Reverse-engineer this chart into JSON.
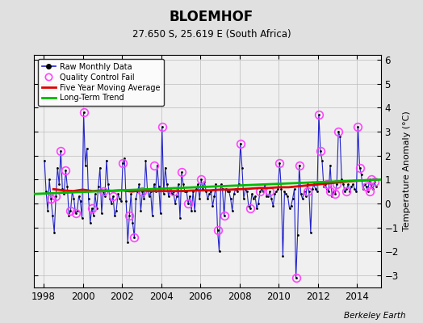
{
  "title": "BLOEMHOF",
  "subtitle": "27.650 S, 25.619 E (South Africa)",
  "ylabel": "Temperature Anomaly (°C)",
  "credit": "Berkeley Earth",
  "xlim": [
    1997.5,
    2015.2
  ],
  "ylim": [
    -3.5,
    6.2
  ],
  "yticks": [
    -3,
    -2,
    -1,
    0,
    1,
    2,
    3,
    4,
    5,
    6
  ],
  "xticks": [
    1998,
    2000,
    2002,
    2004,
    2006,
    2008,
    2010,
    2012,
    2014
  ],
  "bg_color": "#e0e0e0",
  "plot_bg_color": "#f0f0f0",
  "raw_line_color": "#2222cc",
  "raw_marker_color": "#000000",
  "qc_fail_color": "#ff44ff",
  "moving_avg_color": "#dd0000",
  "trend_color": "#00bb00",
  "raw_times": [
    1998.042,
    1998.125,
    1998.208,
    1998.292,
    1998.375,
    1998.458,
    1998.542,
    1998.625,
    1998.708,
    1998.792,
    1998.875,
    1998.958,
    1999.042,
    1999.125,
    1999.208,
    1999.292,
    1999.375,
    1999.458,
    1999.542,
    1999.625,
    1999.708,
    1999.792,
    1999.875,
    1999.958,
    2000.042,
    2000.125,
    2000.208,
    2000.292,
    2000.375,
    2000.458,
    2000.542,
    2000.625,
    2000.708,
    2000.792,
    2000.875,
    2000.958,
    2001.042,
    2001.125,
    2001.208,
    2001.292,
    2001.375,
    2001.458,
    2001.542,
    2001.625,
    2001.708,
    2001.792,
    2001.875,
    2001.958,
    2002.042,
    2002.125,
    2002.208,
    2002.292,
    2002.375,
    2002.458,
    2002.542,
    2002.625,
    2002.708,
    2002.792,
    2002.875,
    2002.958,
    2003.042,
    2003.125,
    2003.208,
    2003.292,
    2003.375,
    2003.458,
    2003.542,
    2003.625,
    2003.708,
    2003.792,
    2003.875,
    2003.958,
    2004.042,
    2004.125,
    2004.208,
    2004.292,
    2004.375,
    2004.458,
    2004.542,
    2004.625,
    2004.708,
    2004.792,
    2004.875,
    2004.958,
    2005.042,
    2005.125,
    2005.208,
    2005.292,
    2005.375,
    2005.458,
    2005.542,
    2005.625,
    2005.708,
    2005.792,
    2005.875,
    2005.958,
    2006.042,
    2006.125,
    2006.208,
    2006.292,
    2006.375,
    2006.458,
    2006.542,
    2006.625,
    2006.708,
    2006.792,
    2006.875,
    2006.958,
    2007.042,
    2007.125,
    2007.208,
    2007.292,
    2007.375,
    2007.458,
    2007.542,
    2007.625,
    2007.708,
    2007.792,
    2007.875,
    2007.958,
    2008.042,
    2008.125,
    2008.208,
    2008.292,
    2008.375,
    2008.458,
    2008.542,
    2008.625,
    2008.708,
    2008.792,
    2008.875,
    2008.958,
    2009.042,
    2009.125,
    2009.208,
    2009.292,
    2009.375,
    2009.458,
    2009.542,
    2009.625,
    2009.708,
    2009.792,
    2009.875,
    2009.958,
    2010.042,
    2010.125,
    2010.208,
    2010.292,
    2010.375,
    2010.458,
    2010.542,
    2010.625,
    2010.708,
    2010.792,
    2010.875,
    2010.958,
    2011.042,
    2011.125,
    2011.208,
    2011.292,
    2011.375,
    2011.458,
    2011.542,
    2011.625,
    2011.708,
    2011.792,
    2011.875,
    2011.958,
    2012.042,
    2012.125,
    2012.208,
    2012.292,
    2012.375,
    2012.458,
    2012.542,
    2012.625,
    2012.708,
    2012.792,
    2012.875,
    2012.958,
    2013.042,
    2013.125,
    2013.208,
    2013.292,
    2013.375,
    2013.458,
    2013.542,
    2013.625,
    2013.708,
    2013.792,
    2013.875,
    2013.958,
    2014.042,
    2014.125,
    2014.208,
    2014.292,
    2014.375,
    2014.458,
    2014.542,
    2014.625,
    2014.708,
    2014.792,
    2014.875,
    2014.958
  ],
  "raw_values": [
    1.8,
    0.5,
    -0.3,
    1.0,
    0.2,
    -0.5,
    -1.2,
    0.3,
    1.5,
    0.8,
    2.2,
    0.6,
    0.4,
    1.4,
    0.7,
    -0.5,
    -0.3,
    0.5,
    0.2,
    -0.4,
    -0.3,
    0.3,
    0.1,
    -0.6,
    3.8,
    1.6,
    2.3,
    0.2,
    -0.8,
    -0.2,
    -0.5,
    0.4,
    -0.2,
    0.7,
    1.5,
    -0.4,
    0.5,
    0.3,
    1.8,
    0.8,
    0.2,
    0.0,
    0.3,
    -0.5,
    -0.3,
    0.4,
    0.2,
    0.1,
    1.7,
    1.9,
    0.1,
    -1.6,
    -0.5,
    0.4,
    -0.8,
    -1.4,
    0.2,
    0.5,
    0.8,
    -0.3,
    0.5,
    0.2,
    1.8,
    0.6,
    0.3,
    0.5,
    -0.5,
    0.8,
    0.5,
    1.6,
    0.7,
    -0.4,
    3.2,
    0.4,
    1.5,
    0.8,
    0.3,
    0.6,
    0.4,
    0.5,
    0.0,
    0.3,
    0.8,
    -0.6,
    1.3,
    0.8,
    0.5,
    0.5,
    0.0,
    0.3,
    -0.3,
    0.5,
    -0.3,
    0.6,
    0.8,
    0.2,
    1.0,
    0.6,
    0.9,
    0.5,
    0.2,
    0.4,
    0.5,
    -0.1,
    0.3,
    0.8,
    -1.1,
    -2.0,
    0.8,
    0.6,
    -0.5,
    0.6,
    0.5,
    0.5,
    0.2,
    -0.3,
    0.4,
    0.6,
    0.5,
    0.8,
    2.5,
    1.5,
    0.2,
    0.6,
    0.5,
    -0.1,
    -0.2,
    0.4,
    0.2,
    0.3,
    -0.2,
    0.0,
    0.5,
    0.6,
    0.5,
    0.8,
    0.3,
    0.3,
    0.5,
    0.2,
    -0.1,
    0.4,
    0.5,
    0.6,
    1.7,
    0.6,
    -2.2,
    0.5,
    0.4,
    0.3,
    -0.2,
    -0.1,
    0.2,
    0.6,
    -3.1,
    -1.3,
    1.6,
    0.4,
    0.2,
    0.5,
    0.3,
    0.8,
    0.5,
    -1.2,
    0.6,
    0.8,
    0.6,
    0.5,
    3.7,
    2.2,
    1.8,
    0.7,
    0.8,
    0.6,
    0.5,
    1.6,
    0.3,
    0.5,
    0.4,
    0.8,
    3.0,
    2.8,
    1.0,
    0.8,
    0.5,
    0.6,
    0.8,
    0.5,
    0.7,
    0.8,
    0.6,
    0.5,
    3.2,
    1.5,
    1.2,
    0.6,
    0.8,
    0.7,
    0.5,
    1.0,
    0.8,
    0.6,
    0.9,
    0.7
  ],
  "qc_fail_times": [
    1998.375,
    1998.625,
    1998.875,
    1999.125,
    1999.375,
    1999.625,
    2000.042,
    2000.458,
    2001.042,
    2001.542,
    2002.042,
    2002.375,
    2002.625,
    2003.042,
    2003.625,
    2004.042,
    2004.625,
    2005.042,
    2005.375,
    2006.042,
    2006.875,
    2007.208,
    2008.042,
    2008.542,
    2009.042,
    2009.542,
    2010.042,
    2010.875,
    2011.042,
    2011.458,
    2012.042,
    2012.125,
    2012.458,
    2012.625,
    2012.875,
    2012.958,
    2013.042,
    2013.458,
    2014.042,
    2014.125,
    2014.458,
    2014.625,
    2014.708,
    2014.875
  ],
  "qc_fail_values": [
    0.2,
    0.3,
    2.2,
    1.4,
    -0.3,
    -0.4,
    3.8,
    -0.2,
    0.5,
    0.3,
    1.7,
    -0.5,
    -1.4,
    0.5,
    1.6,
    3.2,
    0.5,
    1.3,
    0.0,
    1.0,
    -1.1,
    -0.5,
    2.5,
    -0.2,
    0.5,
    0.5,
    1.7,
    -3.1,
    1.6,
    0.5,
    3.7,
    2.2,
    0.8,
    0.5,
    0.4,
    0.8,
    3.0,
    0.5,
    3.2,
    1.5,
    0.7,
    0.5,
    1.0,
    0.9
  ],
  "moving_avg_times": [
    1998.5,
    1999.0,
    1999.5,
    2000.0,
    2000.5,
    2001.0,
    2001.5,
    2002.0,
    2002.5,
    2003.0,
    2003.5,
    2004.0,
    2004.5,
    2005.0,
    2005.5,
    2006.0,
    2006.5,
    2007.0,
    2007.5,
    2008.0,
    2008.5,
    2009.0,
    2009.5,
    2010.0,
    2010.5,
    2011.0,
    2011.5,
    2012.0,
    2012.5,
    2013.0,
    2013.5,
    2014.0,
    2014.5
  ],
  "moving_avg_values": [
    0.6,
    0.55,
    0.52,
    0.58,
    0.52,
    0.55,
    0.53,
    0.55,
    0.5,
    0.55,
    0.52,
    0.52,
    0.52,
    0.52,
    0.54,
    0.55,
    0.55,
    0.58,
    0.58,
    0.6,
    0.62,
    0.65,
    0.65,
    0.68,
    0.68,
    0.72,
    0.76,
    0.8,
    0.84,
    0.88,
    0.92,
    0.95,
    0.97
  ],
  "trend_times": [
    1997.5,
    2015.2
  ],
  "trend_values": [
    0.4,
    1.0
  ]
}
